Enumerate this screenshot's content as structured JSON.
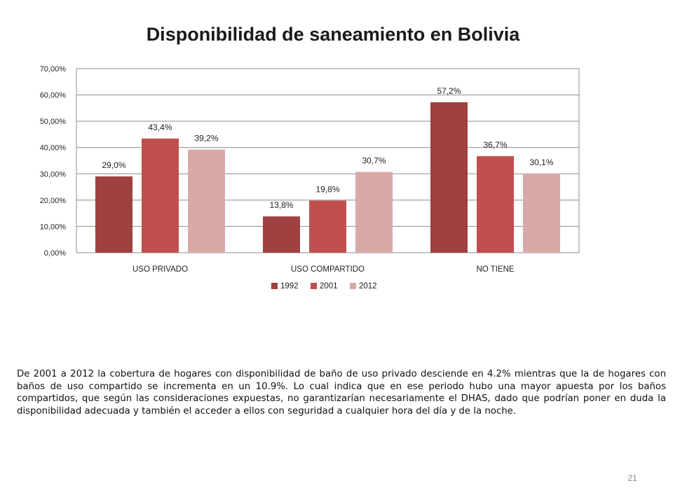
{
  "slide": {
    "body_text": "De 2001 a 2012 la cobertura de hogares con disponibilidad de baño de uso privado desciende en 4.2% mientras que la de hogares con baños de uso compartido se incrementa en un 10.9%. Lo cual indica que en ese periodo hubo una mayor apuesta por los baños compartidos, que según las consideraciones expuestas, no garantizarían necesariamente el DHAS, dado que podrían poner en duda la disponibilidad adecuada y también el acceder a ellos con seguridad a cualquier hora del día y de la noche.",
    "page_number": "21"
  },
  "chart_data": {
    "type": "bar",
    "title": "Disponibilidad de saneamiento en Bolivia",
    "xlabel": "",
    "ylabel": "",
    "categories": [
      "USO PRIVADO",
      "USO COMPARTIDO",
      "NO TIENE"
    ],
    "series": [
      {
        "name": "1992",
        "values": [
          29.0,
          13.8,
          57.2
        ],
        "labels": [
          "29,0%",
          "13,8%",
          "57,2%"
        ],
        "color": "#a04040"
      },
      {
        "name": "2001",
        "values": [
          43.4,
          19.8,
          36.7
        ],
        "labels": [
          "43,4%",
          "19,8%",
          "36,7%"
        ],
        "color": "#c0504d"
      },
      {
        "name": "2012",
        "values": [
          39.2,
          30.7,
          30.1
        ],
        "labels": [
          "39,2%",
          "30,7%",
          "30,1%"
        ],
        "color": "#d9a9a8"
      }
    ],
    "ylim": [
      0,
      70
    ],
    "yticks": [
      0,
      10,
      20,
      30,
      40,
      50,
      60,
      70
    ],
    "ytick_labels": [
      "0,00%",
      "10,00%",
      "20,00%",
      "30,00%",
      "40,00%",
      "50,00%",
      "60,00%",
      "70,00%"
    ],
    "grid": true,
    "legend_position": "bottom"
  }
}
